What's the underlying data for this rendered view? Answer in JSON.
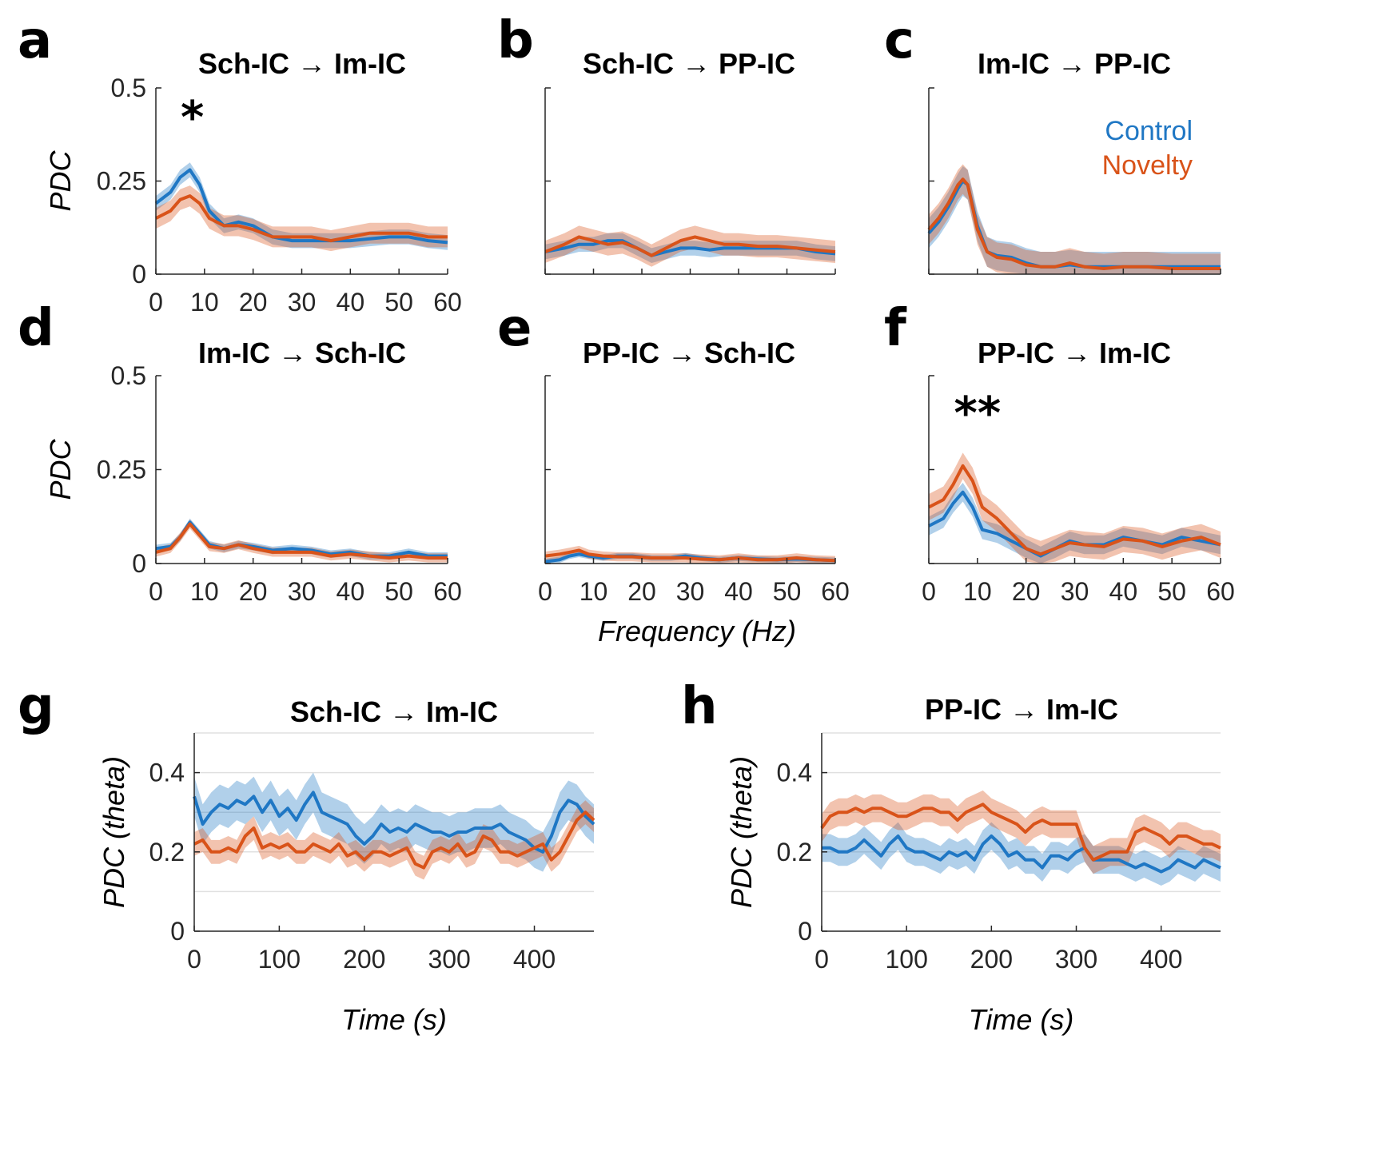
{
  "colors": {
    "control": "#1f77c4",
    "novelty": "#d95319"
  },
  "legend": {
    "control": "Control",
    "novelty": "Novelty"
  },
  "freq_xlabel": "Frequency (Hz)",
  "chart_data": [
    {
      "id": "a",
      "panel_label": "a",
      "type": "line",
      "title_from": "Sch-IC",
      "arrow": "→",
      "title_to": "Im-IC",
      "xlabel": "",
      "ylabel": "PDC",
      "xlim": [
        0,
        60
      ],
      "ylim": [
        0,
        0.5
      ],
      "xticks": [
        0,
        10,
        20,
        30,
        40,
        50,
        60
      ],
      "yticks": [
        0,
        0.25,
        0.5
      ],
      "xticklabels": [
        "0",
        "10",
        "20",
        "30",
        "40",
        "50",
        "60"
      ],
      "yticklabels": [
        "0",
        "0.25",
        "0.5"
      ],
      "annotation": "*",
      "annotation_x": 7.5,
      "annotation_y": 0.38,
      "x": [
        0,
        3,
        5,
        7,
        9,
        11,
        14,
        17,
        20,
        24,
        28,
        32,
        36,
        40,
        44,
        48,
        52,
        56,
        60
      ],
      "series": [
        {
          "name": "Control",
          "values": [
            0.19,
            0.22,
            0.26,
            0.28,
            0.24,
            0.17,
            0.13,
            0.14,
            0.13,
            0.1,
            0.09,
            0.09,
            0.09,
            0.09,
            0.095,
            0.1,
            0.1,
            0.09,
            0.085
          ],
          "err": 0.02
        },
        {
          "name": "Novelty",
          "values": [
            0.15,
            0.17,
            0.2,
            0.21,
            0.19,
            0.15,
            0.13,
            0.13,
            0.12,
            0.1,
            0.1,
            0.1,
            0.09,
            0.1,
            0.11,
            0.11,
            0.11,
            0.1,
            0.1
          ],
          "err": 0.028
        }
      ]
    },
    {
      "id": "b",
      "panel_label": "b",
      "type": "line",
      "title_from": "Sch-IC",
      "arrow": "→",
      "title_to": "PP-IC",
      "xlabel": "",
      "ylabel": "",
      "xlim": [
        0,
        60
      ],
      "ylim": [
        0,
        0.5
      ],
      "xticks": [
        0,
        10,
        20,
        30,
        40,
        50,
        60
      ],
      "yticks": [
        0,
        0.25,
        0.5
      ],
      "xticklabels": [],
      "yticklabels": [],
      "x": [
        0,
        4,
        7,
        10,
        13,
        16,
        19,
        22,
        25,
        28,
        31,
        34,
        37,
        40,
        44,
        48,
        52,
        56,
        60
      ],
      "series": [
        {
          "name": "Control",
          "values": [
            0.06,
            0.07,
            0.08,
            0.08,
            0.09,
            0.09,
            0.07,
            0.05,
            0.06,
            0.07,
            0.07,
            0.065,
            0.07,
            0.07,
            0.07,
            0.07,
            0.07,
            0.06,
            0.055
          ],
          "err": 0.02
        },
        {
          "name": "Novelty",
          "values": [
            0.06,
            0.08,
            0.1,
            0.09,
            0.08,
            0.085,
            0.07,
            0.05,
            0.07,
            0.09,
            0.1,
            0.09,
            0.08,
            0.08,
            0.075,
            0.075,
            0.07,
            0.065,
            0.06
          ],
          "err": 0.03
        }
      ]
    },
    {
      "id": "c",
      "panel_label": "c",
      "type": "line",
      "title_from": "Im-IC",
      "arrow": "→",
      "title_to": "PP-IC",
      "xlabel": "",
      "ylabel": "",
      "xlim": [
        0,
        60
      ],
      "ylim": [
        0,
        0.5
      ],
      "xticks": [
        0,
        10,
        20,
        30,
        40,
        50,
        60
      ],
      "yticks": [
        0,
        0.25,
        0.5
      ],
      "xticklabels": [],
      "yticklabels": [],
      "show_legend": true,
      "x": [
        0,
        2,
        4,
        6,
        7,
        8,
        10,
        12,
        14,
        17,
        20,
        23,
        26,
        29,
        32,
        36,
        40,
        45,
        50,
        55,
        60
      ],
      "series": [
        {
          "name": "Control",
          "values": [
            0.11,
            0.14,
            0.18,
            0.23,
            0.25,
            0.24,
            0.13,
            0.06,
            0.05,
            0.045,
            0.03,
            0.02,
            0.02,
            0.025,
            0.02,
            0.02,
            0.02,
            0.02,
            0.02,
            0.02,
            0.02
          ],
          "err": 0.04
        },
        {
          "name": "Novelty",
          "values": [
            0.12,
            0.15,
            0.19,
            0.24,
            0.255,
            0.24,
            0.12,
            0.06,
            0.045,
            0.04,
            0.025,
            0.02,
            0.02,
            0.03,
            0.02,
            0.015,
            0.02,
            0.02,
            0.015,
            0.015,
            0.015
          ],
          "err": 0.04
        }
      ]
    },
    {
      "id": "d",
      "panel_label": "d",
      "type": "line",
      "title_from": "Im-IC",
      "arrow": "→",
      "title_to": "Sch-IC",
      "xlabel": "",
      "ylabel": "PDC",
      "xlim": [
        0,
        60
      ],
      "ylim": [
        0,
        0.5
      ],
      "xticks": [
        0,
        10,
        20,
        30,
        40,
        50,
        60
      ],
      "yticks": [
        0,
        0.25,
        0.5
      ],
      "xticklabels": [
        "0",
        "10",
        "20",
        "30",
        "40",
        "50",
        "60"
      ],
      "yticklabels": [
        "0",
        "0.25",
        "0.5"
      ],
      "x": [
        0,
        3,
        5,
        7,
        9,
        11,
        14,
        17,
        20,
        24,
        28,
        32,
        36,
        40,
        44,
        48,
        52,
        56,
        60
      ],
      "series": [
        {
          "name": "Control",
          "values": [
            0.04,
            0.045,
            0.07,
            0.11,
            0.08,
            0.05,
            0.04,
            0.05,
            0.045,
            0.035,
            0.04,
            0.035,
            0.025,
            0.03,
            0.02,
            0.02,
            0.03,
            0.02,
            0.02
          ],
          "err": 0.01
        },
        {
          "name": "Novelty",
          "values": [
            0.03,
            0.04,
            0.07,
            0.105,
            0.075,
            0.045,
            0.04,
            0.05,
            0.04,
            0.03,
            0.03,
            0.03,
            0.02,
            0.025,
            0.02,
            0.015,
            0.02,
            0.015,
            0.015
          ],
          "err": 0.012
        }
      ]
    },
    {
      "id": "e",
      "panel_label": "e",
      "type": "line",
      "title_from": "PP-IC",
      "arrow": "→",
      "title_to": "Sch-IC",
      "xlabel": "",
      "ylabel": "",
      "xlim": [
        0,
        60
      ],
      "ylim": [
        0,
        0.5
      ],
      "xticks": [
        0,
        10,
        20,
        30,
        40,
        50,
        60
      ],
      "yticks": [
        0,
        0.25,
        0.5
      ],
      "xticklabels": [
        "0",
        "10",
        "20",
        "30",
        "40",
        "50",
        "60"
      ],
      "yticklabels": [],
      "x": [
        0,
        3,
        5,
        7,
        9,
        12,
        15,
        18,
        22,
        26,
        29,
        32,
        36,
        40,
        44,
        48,
        52,
        56,
        60
      ],
      "series": [
        {
          "name": "Control",
          "values": [
            0.005,
            0.01,
            0.02,
            0.025,
            0.02,
            0.015,
            0.02,
            0.02,
            0.015,
            0.015,
            0.02,
            0.015,
            0.01,
            0.015,
            0.012,
            0.01,
            0.012,
            0.01,
            0.008
          ],
          "err": 0.008
        },
        {
          "name": "Novelty",
          "values": [
            0.02,
            0.025,
            0.03,
            0.035,
            0.025,
            0.02,
            0.018,
            0.018,
            0.015,
            0.015,
            0.015,
            0.012,
            0.01,
            0.015,
            0.01,
            0.01,
            0.015,
            0.01,
            0.008
          ],
          "err": 0.012
        }
      ]
    },
    {
      "id": "f",
      "panel_label": "f",
      "type": "line",
      "title_from": "PP-IC",
      "arrow": "→",
      "title_to": "Im-IC",
      "xlabel": "",
      "ylabel": "",
      "xlim": [
        0,
        60
      ],
      "ylim": [
        0,
        0.5
      ],
      "xticks": [
        0,
        10,
        20,
        30,
        40,
        50,
        60
      ],
      "yticks": [
        0,
        0.25,
        0.5
      ],
      "xticklabels": [
        "0",
        "10",
        "20",
        "30",
        "40",
        "50",
        "60"
      ],
      "yticklabels": [],
      "annotation": "**",
      "annotation_x": 10,
      "annotation_y": 0.36,
      "x": [
        0,
        3,
        5,
        7,
        9,
        11,
        14,
        17,
        20,
        23,
        26,
        29,
        32,
        36,
        40,
        44,
        48,
        52,
        56,
        60
      ],
      "series": [
        {
          "name": "Control",
          "values": [
            0.1,
            0.12,
            0.16,
            0.19,
            0.15,
            0.09,
            0.08,
            0.06,
            0.04,
            0.02,
            0.04,
            0.06,
            0.05,
            0.05,
            0.07,
            0.06,
            0.05,
            0.07,
            0.06,
            0.05
          ],
          "err": 0.025
        },
        {
          "name": "Novelty",
          "values": [
            0.15,
            0.17,
            0.21,
            0.26,
            0.22,
            0.15,
            0.12,
            0.08,
            0.04,
            0.025,
            0.04,
            0.055,
            0.05,
            0.045,
            0.065,
            0.06,
            0.045,
            0.06,
            0.07,
            0.05
          ],
          "err": 0.035
        }
      ]
    },
    {
      "id": "g",
      "panel_label": "g",
      "type": "line",
      "title_from": "Sch-IC",
      "arrow": "→",
      "title_to": "Im-IC",
      "xlabel": "Time (s)",
      "ylabel": "PDC (theta)",
      "xlim": [
        0,
        470
      ],
      "ylim": [
        0,
        0.5
      ],
      "xticks": [
        0,
        100,
        200,
        300,
        400
      ],
      "yticks": [
        0,
        0.2,
        0.4
      ],
      "xticklabels": [
        "0",
        "100",
        "200",
        "300",
        "400"
      ],
      "yticklabels": [
        "0",
        "0.2",
        "0.4"
      ],
      "grid_y": [
        0.1,
        0.2,
        0.3,
        0.4,
        0.5
      ],
      "x": [
        0,
        10,
        20,
        30,
        40,
        50,
        60,
        70,
        80,
        90,
        100,
        110,
        120,
        130,
        140,
        150,
        160,
        170,
        180,
        190,
        200,
        210,
        220,
        230,
        240,
        250,
        260,
        270,
        280,
        290,
        300,
        310,
        320,
        330,
        340,
        350,
        360,
        370,
        380,
        390,
        400,
        410,
        420,
        430,
        440,
        450,
        460,
        470
      ],
      "series": [
        {
          "name": "Control",
          "values": [
            0.34,
            0.27,
            0.3,
            0.32,
            0.31,
            0.33,
            0.32,
            0.34,
            0.3,
            0.33,
            0.29,
            0.31,
            0.28,
            0.32,
            0.35,
            0.3,
            0.29,
            0.28,
            0.27,
            0.24,
            0.22,
            0.24,
            0.27,
            0.25,
            0.26,
            0.25,
            0.27,
            0.26,
            0.25,
            0.25,
            0.24,
            0.25,
            0.25,
            0.26,
            0.26,
            0.26,
            0.27,
            0.25,
            0.24,
            0.23,
            0.21,
            0.2,
            0.24,
            0.3,
            0.33,
            0.32,
            0.29,
            0.27
          ],
          "err": 0.05
        },
        {
          "name": "Novelty",
          "values": [
            0.22,
            0.23,
            0.2,
            0.2,
            0.21,
            0.2,
            0.24,
            0.26,
            0.21,
            0.22,
            0.21,
            0.22,
            0.2,
            0.2,
            0.22,
            0.21,
            0.2,
            0.22,
            0.19,
            0.2,
            0.18,
            0.2,
            0.2,
            0.19,
            0.2,
            0.21,
            0.17,
            0.16,
            0.2,
            0.21,
            0.2,
            0.22,
            0.19,
            0.2,
            0.24,
            0.23,
            0.2,
            0.2,
            0.19,
            0.2,
            0.21,
            0.22,
            0.18,
            0.2,
            0.24,
            0.28,
            0.3,
            0.28
          ],
          "err": 0.03
        }
      ]
    },
    {
      "id": "h",
      "panel_label": "h",
      "type": "line",
      "title_from": "PP-IC",
      "arrow": "→",
      "title_to": "Im-IC",
      "xlabel": "Time (s)",
      "ylabel": "PDC (theta)",
      "xlim": [
        0,
        470
      ],
      "ylim": [
        0,
        0.5
      ],
      "xticks": [
        0,
        100,
        200,
        300,
        400
      ],
      "yticks": [
        0,
        0.2,
        0.4
      ],
      "xticklabels": [
        "0",
        "100",
        "200",
        "300",
        "400"
      ],
      "yticklabels": [
        "0",
        "0.2",
        "0.4"
      ],
      "grid_y": [
        0.1,
        0.2,
        0.3,
        0.4,
        0.5
      ],
      "x": [
        0,
        10,
        20,
        30,
        40,
        50,
        60,
        70,
        80,
        90,
        100,
        110,
        120,
        130,
        140,
        150,
        160,
        170,
        180,
        190,
        200,
        210,
        220,
        230,
        240,
        250,
        260,
        270,
        280,
        290,
        300,
        310,
        320,
        330,
        340,
        350,
        360,
        370,
        380,
        390,
        400,
        410,
        420,
        430,
        440,
        450,
        460,
        470
      ],
      "series": [
        {
          "name": "Control",
          "values": [
            0.21,
            0.21,
            0.2,
            0.2,
            0.21,
            0.23,
            0.21,
            0.19,
            0.22,
            0.24,
            0.21,
            0.2,
            0.2,
            0.19,
            0.18,
            0.2,
            0.19,
            0.2,
            0.18,
            0.22,
            0.24,
            0.22,
            0.19,
            0.2,
            0.18,
            0.18,
            0.16,
            0.19,
            0.19,
            0.18,
            0.2,
            0.21,
            0.18,
            0.18,
            0.18,
            0.18,
            0.17,
            0.16,
            0.17,
            0.16,
            0.15,
            0.16,
            0.18,
            0.17,
            0.16,
            0.18,
            0.17,
            0.16
          ],
          "err": 0.035
        },
        {
          "name": "Novelty",
          "values": [
            0.26,
            0.29,
            0.3,
            0.3,
            0.31,
            0.3,
            0.31,
            0.31,
            0.3,
            0.29,
            0.29,
            0.3,
            0.31,
            0.31,
            0.3,
            0.3,
            0.28,
            0.3,
            0.31,
            0.32,
            0.3,
            0.29,
            0.28,
            0.27,
            0.25,
            0.27,
            0.28,
            0.27,
            0.27,
            0.27,
            0.27,
            0.21,
            0.18,
            0.19,
            0.2,
            0.2,
            0.2,
            0.25,
            0.26,
            0.25,
            0.24,
            0.22,
            0.24,
            0.24,
            0.23,
            0.22,
            0.22,
            0.21
          ],
          "err": 0.035
        }
      ]
    }
  ]
}
